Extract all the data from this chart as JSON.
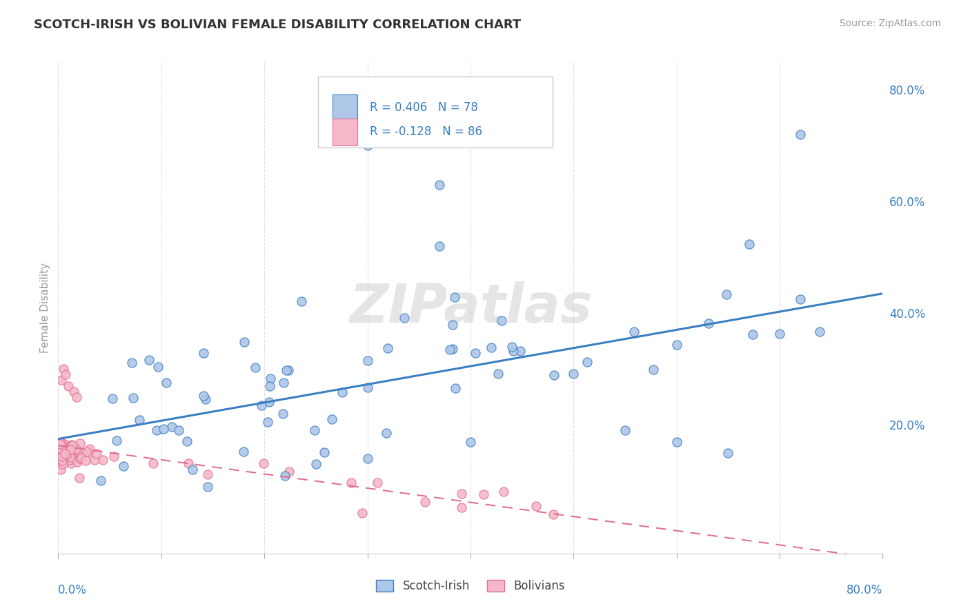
{
  "title": "SCOTCH-IRISH VS BOLIVIAN FEMALE DISABILITY CORRELATION CHART",
  "source": "Source: ZipAtlas.com",
  "ylabel": "Female Disability",
  "watermark": "ZIPatlas",
  "xmin": 0.0,
  "xmax": 0.8,
  "ymin": -0.03,
  "ymax": 0.85,
  "scotch_irish_R": 0.406,
  "scotch_irish_N": 78,
  "bolivian_R": -0.128,
  "bolivian_N": 86,
  "scotch_irish_color": "#aec6e8",
  "bolivian_color": "#f5b8c8",
  "scotch_irish_line_color": "#3a7fc1",
  "bolivian_line_color": "#e07090",
  "title_color": "#333333",
  "legend_text_color": "#3a7fc1",
  "background_color": "#ffffff",
  "grid_color": "#dddddd",
  "si_line_x0": 0.0,
  "si_line_y0": 0.175,
  "si_line_x1": 0.8,
  "si_line_y1": 0.435,
  "bol_line_x0": 0.0,
  "bol_line_y0": 0.163,
  "bol_line_x1": 0.8,
  "bol_line_y1": -0.04
}
